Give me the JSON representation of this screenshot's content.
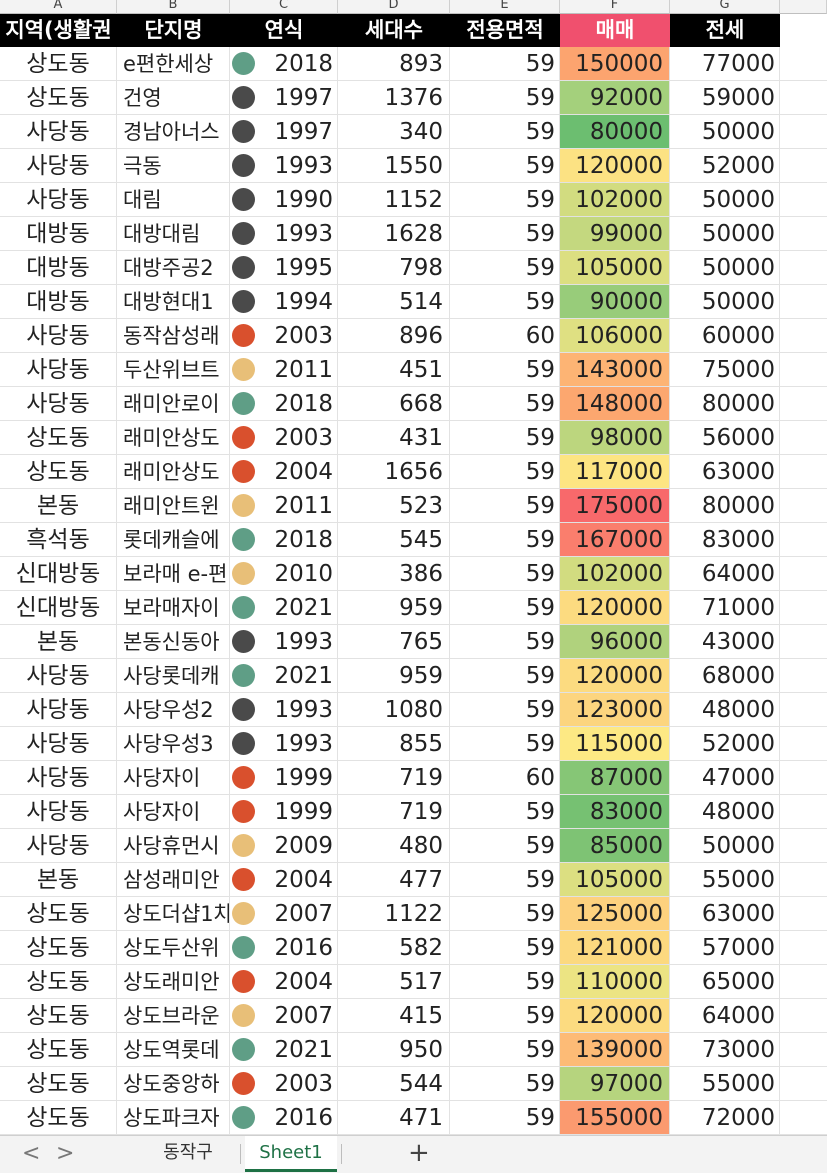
{
  "column_letters": [
    "A",
    "B",
    "C",
    "D",
    "E",
    "F",
    "G"
  ],
  "header": {
    "region": "지역(생활권",
    "complex": "단지명",
    "year": "연식",
    "households": "세대수",
    "area": "전용면적",
    "sale": "매매",
    "jeonse": "전세"
  },
  "dot_colors": {
    "teal": "#5f9e86",
    "gray": "#4a4a4a",
    "red": "#d9502d",
    "tan": "#e8bf78"
  },
  "rows": [
    {
      "region": "상도동",
      "complex": "e편한세상",
      "dot": "teal",
      "year": "2018",
      "households": "893",
      "area": "59",
      "sale": "150000",
      "sale_color": "#fca46f",
      "jeonse": "77000"
    },
    {
      "region": "상도동",
      "complex": "건영",
      "dot": "gray",
      "year": "1997",
      "households": "1376",
      "area": "59",
      "sale": "92000",
      "sale_color": "#a4d07c",
      "jeonse": "59000"
    },
    {
      "region": "사당동",
      "complex": "경남아너스",
      "dot": "gray",
      "year": "1997",
      "households": "340",
      "area": "59",
      "sale": "80000",
      "sale_color": "#6cbe70",
      "jeonse": "50000"
    },
    {
      "region": "사당동",
      "complex": "극동",
      "dot": "gray",
      "year": "1993",
      "households": "1550",
      "area": "59",
      "sale": "120000",
      "sale_color": "#fce283",
      "jeonse": "52000"
    },
    {
      "region": "사당동",
      "complex": "대림",
      "dot": "gray",
      "year": "1990",
      "households": "1152",
      "area": "59",
      "sale": "102000",
      "sale_color": "#d2dc80",
      "jeonse": "50000"
    },
    {
      "region": "대방동",
      "complex": "대방대림",
      "dot": "gray",
      "year": "1993",
      "households": "1628",
      "area": "59",
      "sale": "99000",
      "sale_color": "#c4d87f",
      "jeonse": "50000"
    },
    {
      "region": "대방동",
      "complex": "대방주공2",
      "dot": "gray",
      "year": "1995",
      "households": "798",
      "area": "59",
      "sale": "105000",
      "sale_color": "#dcdf81",
      "jeonse": "50000"
    },
    {
      "region": "대방동",
      "complex": "대방현대1",
      "dot": "gray",
      "year": "1994",
      "households": "514",
      "area": "59",
      "sale": "90000",
      "sale_color": "#98cc7a",
      "jeonse": "50000"
    },
    {
      "region": "사당동",
      "complex": "동작삼성래",
      "dot": "red",
      "year": "2003",
      "households": "896",
      "area": "60",
      "sale": "106000",
      "sale_color": "#dfe082",
      "jeonse": "60000"
    },
    {
      "region": "사당동",
      "complex": "두산위브트",
      "dot": "tan",
      "year": "2011",
      "households": "451",
      "area": "59",
      "sale": "143000",
      "sale_color": "#fdb474",
      "jeonse": "75000"
    },
    {
      "region": "사당동",
      "complex": "래미안로이",
      "dot": "teal",
      "year": "2018",
      "households": "668",
      "area": "59",
      "sale": "148000",
      "sale_color": "#fca76f",
      "jeonse": "80000"
    },
    {
      "region": "상도동",
      "complex": "래미안상도",
      "dot": "red",
      "year": "2003",
      "households": "431",
      "area": "59",
      "sale": "98000",
      "sale_color": "#bcd67e",
      "jeonse": "56000"
    },
    {
      "region": "상도동",
      "complex": "래미안상도",
      "dot": "red",
      "year": "2004",
      "households": "1656",
      "area": "59",
      "sale": "117000",
      "sale_color": "#fde582",
      "jeonse": "63000"
    },
    {
      "region": "본동",
      "complex": "래미안트윈",
      "dot": "tan",
      "year": "2011",
      "households": "523",
      "area": "59",
      "sale": "175000",
      "sale_color": "#f8696b",
      "jeonse": "80000"
    },
    {
      "region": "흑석동",
      "complex": "롯데캐슬에",
      "dot": "teal",
      "year": "2018",
      "households": "545",
      "area": "59",
      "sale": "167000",
      "sale_color": "#fa7e6d",
      "jeonse": "83000"
    },
    {
      "region": "신대방동",
      "complex": "보라매 e-편",
      "dot": "tan",
      "year": "2010",
      "households": "386",
      "area": "59",
      "sale": "102000",
      "sale_color": "#d2dc80",
      "jeonse": "64000"
    },
    {
      "region": "신대방동",
      "complex": "보라매자이",
      "dot": "teal",
      "year": "2021",
      "households": "959",
      "area": "59",
      "sale": "120000",
      "sale_color": "#fcdb80",
      "jeonse": "71000"
    },
    {
      "region": "본동",
      "complex": "본동신동아",
      "dot": "gray",
      "year": "1993",
      "households": "765",
      "area": "59",
      "sale": "96000",
      "sale_color": "#b0d27d",
      "jeonse": "43000"
    },
    {
      "region": "사당동",
      "complex": "사당롯데캐",
      "dot": "teal",
      "year": "2021",
      "households": "959",
      "area": "59",
      "sale": "120000",
      "sale_color": "#fcdb80",
      "jeonse": "68000"
    },
    {
      "region": "사당동",
      "complex": "사당우성2",
      "dot": "gray",
      "year": "1993",
      "households": "1080",
      "area": "59",
      "sale": "123000",
      "sale_color": "#fcd57f",
      "jeonse": "48000"
    },
    {
      "region": "사당동",
      "complex": "사당우성3",
      "dot": "gray",
      "year": "1993",
      "households": "855",
      "area": "59",
      "sale": "115000",
      "sale_color": "#fde984",
      "jeonse": "52000"
    },
    {
      "region": "사당동",
      "complex": "사당자이",
      "dot": "red",
      "year": "1999",
      "households": "719",
      "area": "60",
      "sale": "87000",
      "sale_color": "#86c676",
      "jeonse": "47000"
    },
    {
      "region": "사당동",
      "complex": "사당자이",
      "dot": "red",
      "year": "1999",
      "households": "719",
      "area": "59",
      "sale": "83000",
      "sale_color": "#76c172",
      "jeonse": "48000"
    },
    {
      "region": "사당동",
      "complex": "사당휴먼시",
      "dot": "tan",
      "year": "2009",
      "households": "480",
      "area": "59",
      "sale": "85000",
      "sale_color": "#7ec374",
      "jeonse": "50000"
    },
    {
      "region": "본동",
      "complex": "삼성래미안",
      "dot": "red",
      "year": "2004",
      "households": "477",
      "area": "59",
      "sale": "105000",
      "sale_color": "#dcdf81",
      "jeonse": "55000"
    },
    {
      "region": "상도동",
      "complex": "상도더샵1차",
      "dot": "tan",
      "year": "2007",
      "households": "1122",
      "area": "59",
      "sale": "125000",
      "sale_color": "#fdd17e",
      "jeonse": "63000"
    },
    {
      "region": "상도동",
      "complex": "상도두산위",
      "dot": "teal",
      "year": "2016",
      "households": "582",
      "area": "59",
      "sale": "121000",
      "sale_color": "#fcd97f",
      "jeonse": "57000"
    },
    {
      "region": "상도동",
      "complex": "상도래미안",
      "dot": "red",
      "year": "2004",
      "households": "517",
      "area": "59",
      "sale": "110000",
      "sale_color": "#ece483",
      "jeonse": "65000"
    },
    {
      "region": "상도동",
      "complex": "상도브라운",
      "dot": "tan",
      "year": "2007",
      "households": "415",
      "area": "59",
      "sale": "120000",
      "sale_color": "#fcdb80",
      "jeonse": "64000"
    },
    {
      "region": "상도동",
      "complex": "상도역롯데",
      "dot": "teal",
      "year": "2021",
      "households": "950",
      "area": "59",
      "sale": "139000",
      "sale_color": "#fdbb76",
      "jeonse": "73000"
    },
    {
      "region": "상도동",
      "complex": "상도중앙하",
      "dot": "red",
      "year": "2003",
      "households": "544",
      "area": "59",
      "sale": "97000",
      "sale_color": "#b6d47e",
      "jeonse": "55000"
    },
    {
      "region": "상도동",
      "complex": "상도파크자",
      "dot": "teal",
      "year": "2016",
      "households": "471",
      "area": "59",
      "sale": "155000",
      "sale_color": "#fb9a6f",
      "jeonse": "72000"
    }
  ],
  "tabs": {
    "sheet1": "동작구",
    "sheet2": "Sheet1",
    "add": "+"
  },
  "nav": {
    "prev": "<",
    "next": ">"
  }
}
